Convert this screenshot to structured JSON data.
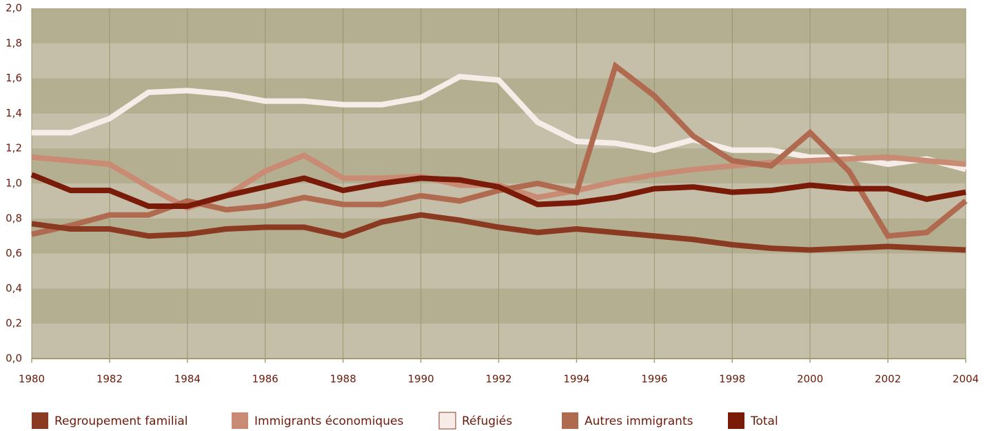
{
  "chart_data": {
    "type": "line",
    "x": [
      1980,
      1981,
      1982,
      1983,
      1984,
      1985,
      1986,
      1987,
      1988,
      1989,
      1990,
      1991,
      1992,
      1993,
      1994,
      1995,
      1996,
      1997,
      1998,
      1999,
      2000,
      2001,
      2002,
      2003,
      2004
    ],
    "xlim": [
      1980,
      2004
    ],
    "xticks": [
      1980,
      1982,
      1984,
      1986,
      1988,
      1990,
      1992,
      1994,
      1996,
      1998,
      2000,
      2002,
      2004
    ],
    "ylim": [
      0,
      2
    ],
    "yticks": [
      {
        "value": 0,
        "label": "0,0"
      },
      {
        "value": 0.2,
        "label": "0,2"
      },
      {
        "value": 0.4,
        "label": "0,4"
      },
      {
        "value": 0.6,
        "label": "0,6"
      },
      {
        "value": 0.8,
        "label": "0,8"
      },
      {
        "value": 1,
        "label": "1,0"
      },
      {
        "value": 1.2,
        "label": "1,2"
      },
      {
        "value": 1.4,
        "label": "1,4"
      },
      {
        "value": 1.6,
        "label": "1,6"
      },
      {
        "value": 1.8,
        "label": "1,8"
      },
      {
        "value": 2,
        "label": "2,0"
      }
    ],
    "grid": true,
    "series": [
      {
        "name": "Regroupement familial",
        "color": "#8b3a22",
        "values": [
          0.77,
          0.74,
          0.74,
          0.7,
          0.71,
          0.74,
          0.75,
          0.75,
          0.7,
          0.78,
          0.82,
          0.79,
          0.75,
          0.72,
          0.74,
          0.72,
          0.7,
          0.68,
          0.65,
          0.63,
          0.62,
          0.63,
          0.64,
          0.63,
          0.62
        ]
      },
      {
        "name": "Immigrants économiques",
        "color": "#c98b74",
        "values": [
          1.15,
          1.13,
          1.11,
          0.98,
          0.86,
          0.93,
          1.07,
          1.16,
          1.03,
          1.03,
          1.04,
          0.99,
          0.99,
          0.92,
          0.96,
          1.01,
          1.05,
          1.08,
          1.1,
          1.12,
          1.13,
          1.14,
          1.15,
          1.13,
          1.11
        ]
      },
      {
        "name": "Réfugiés",
        "color": "#f7ede8",
        "values": [
          1.29,
          1.29,
          1.37,
          1.52,
          1.53,
          1.51,
          1.47,
          1.47,
          1.45,
          1.45,
          1.49,
          1.61,
          1.59,
          1.35,
          1.24,
          1.23,
          1.19,
          1.25,
          1.19,
          1.19,
          1.15,
          1.15,
          1.11,
          1.14,
          1.08
        ]
      },
      {
        "name": "Autres immigrants",
        "color": "#b06a50",
        "values": [
          0.71,
          0.76,
          0.82,
          0.82,
          0.9,
          0.85,
          0.87,
          0.92,
          0.88,
          0.88,
          0.93,
          0.9,
          0.96,
          1.0,
          0.95,
          1.67,
          1.5,
          1.27,
          1.13,
          1.1,
          1.29,
          1.07,
          0.7,
          0.72,
          0.9
        ]
      },
      {
        "name": "Total",
        "color": "#7a1a08",
        "values": [
          1.05,
          0.96,
          0.96,
          0.87,
          0.87,
          0.93,
          0.98,
          1.03,
          0.96,
          1.0,
          1.03,
          1.02,
          0.98,
          0.88,
          0.89,
          0.92,
          0.97,
          0.98,
          0.95,
          0.96,
          0.99,
          0.97,
          0.97,
          0.91,
          0.95
        ]
      }
    ]
  }
}
